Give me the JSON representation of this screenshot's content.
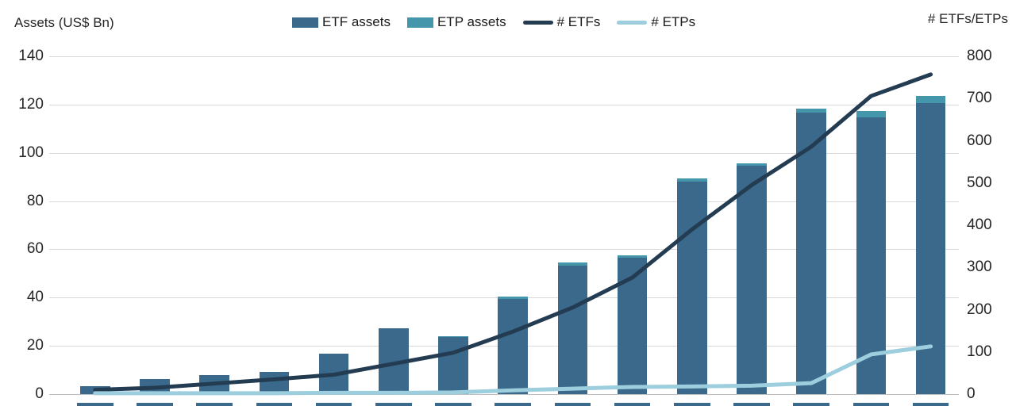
{
  "chart": {
    "left_axis_title": "Assets (US$ Bn)",
    "right_axis_title": "# ETFs/ETPs",
    "legend": [
      {
        "label": "ETF assets",
        "type": "bar",
        "color": "#3a698c"
      },
      {
        "label": "ETP assets",
        "type": "bar",
        "color": "#4496ab"
      },
      {
        "label": "# ETFs",
        "type": "line",
        "color": "#233c52"
      },
      {
        "label": "# ETPs",
        "type": "line",
        "color": "#9ccedd"
      }
    ]
  },
  "chart_data": {
    "type": "combo-bar-line",
    "title": "",
    "categories": [
      "",
      "",
      "",
      "",
      "",
      "",
      "",
      "",
      "",
      "",
      "",
      "",
      "",
      "",
      ""
    ],
    "x_labels_visible": false,
    "series": [
      {
        "name": "ETF assets",
        "type": "bar",
        "axis": "left",
        "stack": "assets",
        "color": "#3a698c",
        "values": [
          3.2,
          6.2,
          7.8,
          9.3,
          16.8,
          27.2,
          23.8,
          39.5,
          53.4,
          56.4,
          88.2,
          94.5,
          116.8,
          114.8,
          120.5
        ]
      },
      {
        "name": "ETP assets",
        "type": "bar",
        "axis": "left",
        "stack": "assets",
        "color": "#4496ab",
        "values": [
          0,
          0,
          0,
          0,
          0,
          0,
          0.3,
          1.0,
          1.2,
          1.2,
          1.1,
          1.1,
          1.5,
          2.4,
          3.0
        ]
      },
      {
        "name": "# ETFs",
        "type": "line",
        "axis": "right",
        "color": "#233c52",
        "values": [
          10,
          15,
          25,
          35,
          46,
          72,
          98,
          148,
          205,
          276,
          390,
          495,
          586,
          706,
          757
        ]
      },
      {
        "name": "# ETPs",
        "type": "line",
        "axis": "right",
        "color": "#9ccedd",
        "values": [
          2,
          2,
          2,
          2,
          3,
          3,
          4,
          9,
          13,
          17,
          18,
          20,
          26,
          94,
          113
        ]
      }
    ],
    "left_axis": {
      "title": "Assets (US$ Bn)",
      "min": 0,
      "max": 140,
      "ticks": [
        0,
        20,
        40,
        60,
        80,
        100,
        120,
        140
      ]
    },
    "right_axis": {
      "title": "# ETFs/ETPs",
      "min": 0,
      "max": 800,
      "ticks": [
        0,
        100,
        200,
        300,
        400,
        500,
        600,
        700,
        800
      ]
    },
    "grid": true,
    "legend_position": "top"
  },
  "colors": {
    "background": "#ffffff",
    "gridline": "#d9d9d9",
    "axis_line": "#bfbfbf",
    "text": "#262626",
    "etf_bar": "#3a698c",
    "etp_bar": "#4496ab",
    "etfs_line": "#233c52",
    "etps_line": "#9ccedd"
  }
}
